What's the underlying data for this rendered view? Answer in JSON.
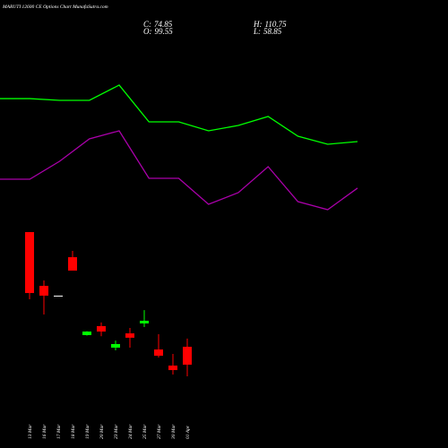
{
  "chart_data": [
    {
      "type": "candlestick",
      "title": "MARUTI 12600 CE Options Chart MunafaSutra.com",
      "ohlc": [
        {
          "label": "C:",
          "value": 74.85
        },
        {
          "label": "O:",
          "value": 99.55
        },
        {
          "label": "H:",
          "value": 110.75
        },
        {
          "label": "L:",
          "value": 58.85
        }
      ],
      "categories": [
        "13 Mar",
        "16 Mar",
        "17 Mar",
        "18 Mar",
        "19 Mar",
        "20 Mar",
        "23 Mar",
        "24 Mar",
        "25 Mar",
        "27 Mar",
        "30 Mar",
        "01 Apr"
      ],
      "open": [
        257.6,
        183.5,
        170,
        223,
        115.6,
        128,
        98.3,
        118,
        131.7,
        95.8,
        73.6,
        99.55
      ],
      "high": [
        257.6,
        191,
        170,
        231.7,
        121,
        133,
        108,
        125.5,
        150,
        116.8,
        89.7,
        110.75
      ],
      "low": [
        165,
        144,
        170,
        204.5,
        115,
        114,
        94.6,
        98.3,
        126.7,
        84.7,
        61.3,
        58.85
      ],
      "close": [
        173.6,
        170,
        170,
        204.5,
        120.5,
        120.5,
        103.3,
        112,
        135.4,
        87.2,
        67.4,
        74.85
      ],
      "up_color": "#00ff00",
      "down_color": "#ff0000",
      "doji_color": "#ffffff",
      "ylim": [
        -40,
        577.5
      ]
    },
    {
      "type": "line",
      "series": [
        {
          "color": "#00ff00",
          "values": [
            441.6,
            441.6,
            439.2,
            439.2,
            460.2,
            409.5,
            409.5,
            397.2,
            404.6,
            417,
            389.8,
            378.7,
            382.4
          ]
        },
        {
          "color": "#aa00aa",
          "values": [
            330.5,
            330.5,
            355.2,
            386.1,
            397.2,
            331.7,
            331.7,
            295.9,
            312,
            347.8,
            299.6,
            288.5,
            318.2
          ]
        }
      ],
      "ylim": [
        -40,
        577.5
      ]
    }
  ]
}
